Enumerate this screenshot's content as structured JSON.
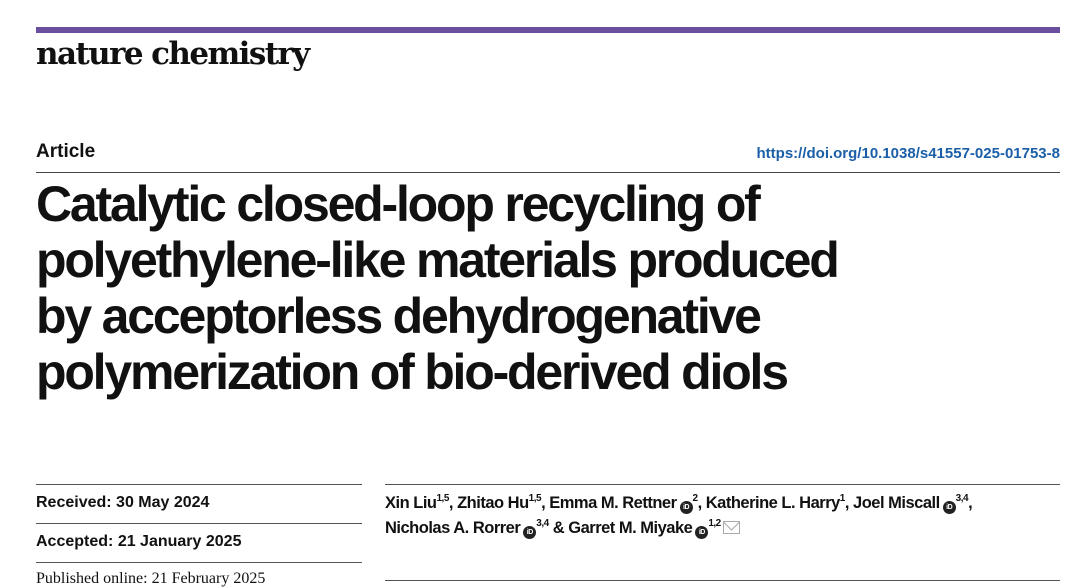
{
  "journal": {
    "name": "nature chemistry",
    "brand_color": "#6b4f9e"
  },
  "article_type": "Article",
  "doi": "https://doi.org/10.1038/s41557-025-01753-8",
  "title_lines": [
    "Catalytic closed-loop recycling of",
    "polyethylene-like materials produced",
    "by acceptorless dehydrogenative",
    "polymerization of bio-derived diols"
  ],
  "dates": {
    "received_label": "Received:",
    "received": "30 May 2024",
    "accepted_label": "Accepted:",
    "accepted": "21 January 2025",
    "published_label": "Published online:",
    "published": "21 February 2025"
  },
  "authors": [
    {
      "name": "Xin Liu",
      "aff": "1,5",
      "orcid": false,
      "sep": ", "
    },
    {
      "name": "Zhitao Hu",
      "aff": "1,5",
      "orcid": false,
      "sep": ", "
    },
    {
      "name": "Emma M. Rettner",
      "aff": "2",
      "orcid": true,
      "sep": ", "
    },
    {
      "name": "Katherine L. Harry",
      "aff": "1",
      "orcid": false,
      "sep": ", "
    },
    {
      "name": "Joel Miscall",
      "aff": "3,4",
      "orcid": true,
      "sep": ","
    },
    {
      "name": "Nicholas A. Rorrer",
      "aff": "3,4",
      "orcid": true,
      "sep": " & "
    },
    {
      "name": "Garret M. Miyake",
      "aff": "1,2",
      "orcid": true,
      "sep": ""
    }
  ],
  "orcid_glyph": "iD"
}
